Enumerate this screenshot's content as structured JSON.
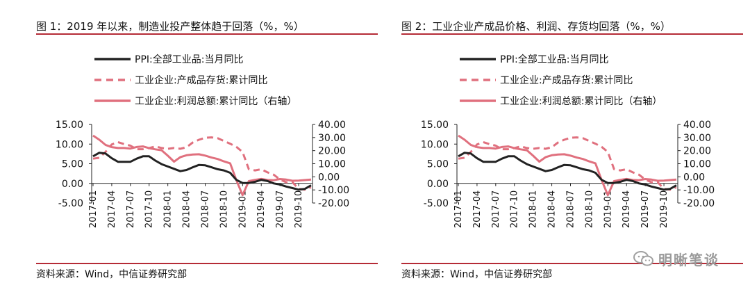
{
  "watermark": {
    "text": "明晰笔谈",
    "icon": "wechat-icon"
  },
  "colors": {
    "ppi": "#222222",
    "inventory": "#e0707e",
    "profit": "#e0707e",
    "rule": "#b52b36"
  },
  "charts": [
    {
      "title": "图 1：2019 年以来，制造业投产整体趋于回落（%，%）",
      "source": "资料来源：Wind，中信证券研究部",
      "chart_data": {
        "type": "line",
        "x_ticks": [
          "2017-01",
          "2017-04",
          "2017-07",
          "2017-10",
          "2018-01",
          "2018-04",
          "2018-07",
          "2018-10",
          "2019-01",
          "2019-04",
          "2019-07",
          "2019-10"
        ],
        "left_axis": {
          "min": -5,
          "max": 15,
          "ticks": [
            "15.00",
            "10.00",
            "5.00",
            "0.00",
            "-5.00"
          ]
        },
        "right_axis": {
          "min": -20,
          "max": 40,
          "ticks": [
            "40.00",
            "30.00",
            "20.00",
            "10.00",
            "0.00",
            "-10.00",
            "-20.00"
          ]
        },
        "legend": [
          "PPI:全部工业品:当月同比",
          "工业企业:产成品存货:累计同比",
          "工业企业:利润总额:累计同比（右轴）"
        ],
        "series": [
          {
            "name": "PPI:全部工业品:当月同比",
            "axis": "left",
            "style": "solid-dark",
            "values": [
              6.9,
              7.8,
              7.6,
              6.4,
              5.5,
              5.5,
              5.5,
              6.3,
              6.9,
              6.9,
              5.8,
              4.9,
              4.3,
              3.7,
              3.1,
              3.4,
              4.1,
              4.7,
              4.6,
              4.1,
              3.6,
              3.3,
              2.7,
              0.9,
              0.1,
              0.1,
              0.4,
              0.9,
              0.6,
              0.0,
              -0.3,
              -0.8,
              -1.2,
              -1.6,
              -1.4,
              -0.5
            ]
          },
          {
            "name": "工业企业:产成品存货:累计同比",
            "axis": "left",
            "style": "dashed-pink",
            "values": [
              6.3,
              6.5,
              8.0,
              9.9,
              10.5,
              10.0,
              9.6,
              8.7,
              8.7,
              9.0,
              9.4,
              9.0,
              8.8,
              9.0,
              8.8,
              9.2,
              10.4,
              11.1,
              11.6,
              11.7,
              11.5,
              10.8,
              10.1,
              9.3,
              8.0,
              3.6,
              3.3,
              3.6,
              2.8,
              2.2,
              1.0,
              0.3,
              0.3,
              -1.4,
              -1.6,
              -1.0
            ]
          },
          {
            "name": "工业企业:利润总额:累计同比（右轴）",
            "axis": "right",
            "style": "solid-pink",
            "values": [
              31.5,
              28.3,
              24.4,
              22.7,
              22.0,
              22.0,
              21.6,
              22.8,
              23.2,
              21.9,
              21.0,
              20.3,
              16.1,
              11.6,
              15.0,
              16.5,
              17.0,
              17.2,
              16.2,
              14.7,
              13.6,
              11.8,
              10.3,
              -2.4,
              -14.0,
              -3.3,
              -2.3,
              -1.6,
              -2.4,
              -2.6,
              -1.7,
              -2.1,
              -3.0,
              -2.9,
              -2.5,
              -2.1
            ]
          }
        ]
      }
    },
    {
      "title": "图 2：工业企业产成品价格、利润、存货均回落（%，%）",
      "source": "资料来源：Wind，中信证券研究部",
      "chart_data": {
        "type": "line",
        "x_ticks": [
          "2017-01",
          "2017-04",
          "2017-07",
          "2017-10",
          "2018-01",
          "2018-04",
          "2018-07",
          "2018-10",
          "2019-01",
          "2019-04",
          "2019-07",
          "2019-10"
        ],
        "left_axis": {
          "min": -5,
          "max": 15,
          "ticks": [
            "15.00",
            "10.00",
            "5.00",
            "0.00",
            "-5.00"
          ]
        },
        "right_axis": {
          "min": -20,
          "max": 40,
          "ticks": [
            "40.00",
            "30.00",
            "20.00",
            "10.00",
            "0.00",
            "-10.00",
            "-20.00"
          ]
        },
        "legend": [
          "PPI:全部工业品:当月同比",
          "工业企业:产成品存货:累计同比",
          "工业企业:利润总额:累计同比（右轴）"
        ],
        "series": [
          {
            "name": "PPI:全部工业品:当月同比",
            "axis": "left",
            "style": "solid-dark",
            "values": [
              6.9,
              7.8,
              7.6,
              6.4,
              5.5,
              5.5,
              5.5,
              6.3,
              6.9,
              6.9,
              5.8,
              4.9,
              4.3,
              3.7,
              3.1,
              3.4,
              4.1,
              4.7,
              4.6,
              4.1,
              3.6,
              3.3,
              2.7,
              0.9,
              0.1,
              0.1,
              0.4,
              0.9,
              0.6,
              0.0,
              -0.3,
              -0.8,
              -1.2,
              -1.6,
              -1.4,
              -0.5
            ]
          },
          {
            "name": "工业企业:产成品存货:累计同比",
            "axis": "left",
            "style": "dashed-pink",
            "values": [
              6.3,
              6.5,
              8.0,
              9.9,
              10.5,
              10.0,
              9.6,
              8.7,
              8.7,
              9.0,
              9.4,
              9.0,
              8.8,
              9.0,
              8.8,
              9.2,
              10.4,
              11.1,
              11.6,
              11.7,
              11.5,
              10.8,
              10.1,
              9.3,
              8.0,
              3.6,
              3.3,
              3.6,
              2.8,
              2.2,
              1.0,
              0.3,
              0.3,
              -1.4,
              -1.6,
              -1.0
            ]
          },
          {
            "name": "工业企业:利润总额:累计同比（右轴）",
            "axis": "right",
            "style": "solid-pink",
            "values": [
              31.5,
              28.3,
              24.4,
              22.7,
              22.0,
              22.0,
              21.6,
              22.8,
              23.2,
              21.9,
              21.0,
              20.3,
              16.1,
              11.6,
              15.0,
              16.5,
              17.0,
              17.2,
              16.2,
              14.7,
              13.6,
              11.8,
              10.3,
              -2.4,
              -14.0,
              -3.3,
              -2.3,
              -1.6,
              -2.4,
              -2.6,
              -1.7,
              -2.1,
              -3.0,
              -2.9,
              -2.5,
              -2.1
            ]
          }
        ]
      }
    }
  ]
}
